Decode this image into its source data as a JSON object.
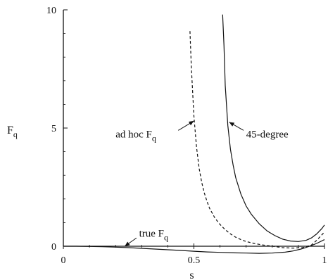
{
  "chart_data": {
    "type": "line",
    "title": "",
    "xlabel": "s",
    "ylabel": "F",
    "ylabel_subscript": "q",
    "xlim": [
      0,
      1
    ],
    "ylim": [
      0,
      10
    ],
    "x_ticks": [
      {
        "value": 0,
        "label": "0"
      },
      {
        "value": 0.5,
        "label": "0.5"
      },
      {
        "value": 1,
        "label": "1"
      }
    ],
    "y_ticks": [
      {
        "value": 0,
        "label": "0"
      },
      {
        "value": 5,
        "label": "5"
      },
      {
        "value": 10,
        "label": "10"
      }
    ],
    "grid": false,
    "series": [
      {
        "style": "dashed",
        "x": [
          0.485,
          0.49,
          0.5,
          0.51,
          0.52,
          0.53,
          0.54,
          0.55,
          0.56,
          0.58,
          0.6,
          0.62,
          0.64,
          0.66,
          0.68,
          0.7,
          0.73,
          0.76,
          0.8,
          0.84,
          0.88,
          0.92,
          0.95,
          0.97,
          1.0
        ],
        "y": [
          9.1,
          7.6,
          5.5,
          4.2,
          3.3,
          2.7,
          2.25,
          1.9,
          1.6,
          1.2,
          0.92,
          0.7,
          0.52,
          0.38,
          0.28,
          0.2,
          0.12,
          0.06,
          0.0,
          -0.06,
          -0.08,
          -0.05,
          0.05,
          0.25,
          0.6
        ]
      },
      {
        "style": "solid",
        "x": [
          0.61,
          0.615,
          0.62,
          0.63,
          0.64,
          0.65,
          0.66,
          0.68,
          0.7,
          0.72,
          0.75,
          0.78,
          0.81,
          0.84,
          0.87,
          0.9,
          0.93,
          0.95,
          0.97,
          0.99,
          1.0
        ],
        "y": [
          9.8,
          8.5,
          6.8,
          5.1,
          4.1,
          3.45,
          2.9,
          2.2,
          1.7,
          1.35,
          0.95,
          0.65,
          0.45,
          0.3,
          0.22,
          0.2,
          0.25,
          0.35,
          0.52,
          0.75,
          0.9
        ]
      },
      {
        "style": "solid",
        "x": [
          0.0,
          0.05,
          0.1,
          0.15,
          0.2,
          0.25,
          0.3,
          0.35,
          0.4,
          0.45,
          0.5,
          0.55,
          0.6,
          0.65,
          0.7,
          0.75,
          0.8,
          0.85,
          0.88,
          0.91,
          0.93,
          0.95,
          0.97,
          1.0
        ],
        "y": [
          0.0,
          0.0,
          -0.01,
          -0.02,
          -0.04,
          -0.06,
          -0.09,
          -0.12,
          -0.15,
          -0.18,
          -0.21,
          -0.24,
          -0.26,
          -0.28,
          -0.29,
          -0.3,
          -0.29,
          -0.25,
          -0.2,
          -0.12,
          -0.05,
          0.03,
          0.12,
          0.28
        ]
      }
    ],
    "annotations": [
      {
        "text": "ad hoc F",
        "subscript": "q",
        "text_x": 0.2,
        "text_y": 4.6,
        "anchor": "start",
        "arrow_from": [
          0.44,
          4.9
        ],
        "arrow_to": [
          0.5,
          5.3
        ]
      },
      {
        "text": "45-degree",
        "text_x": 0.7,
        "text_y": 4.6,
        "anchor": "start",
        "arrow_from": [
          0.69,
          4.9
        ],
        "arrow_to": [
          0.635,
          5.25
        ]
      },
      {
        "text": "true F",
        "subscript": "q",
        "text_x": 0.29,
        "text_y": 0.4,
        "anchor": "start",
        "arrow_from": [
          0.28,
          0.35
        ],
        "arrow_to": [
          0.235,
          0.0
        ]
      }
    ]
  }
}
